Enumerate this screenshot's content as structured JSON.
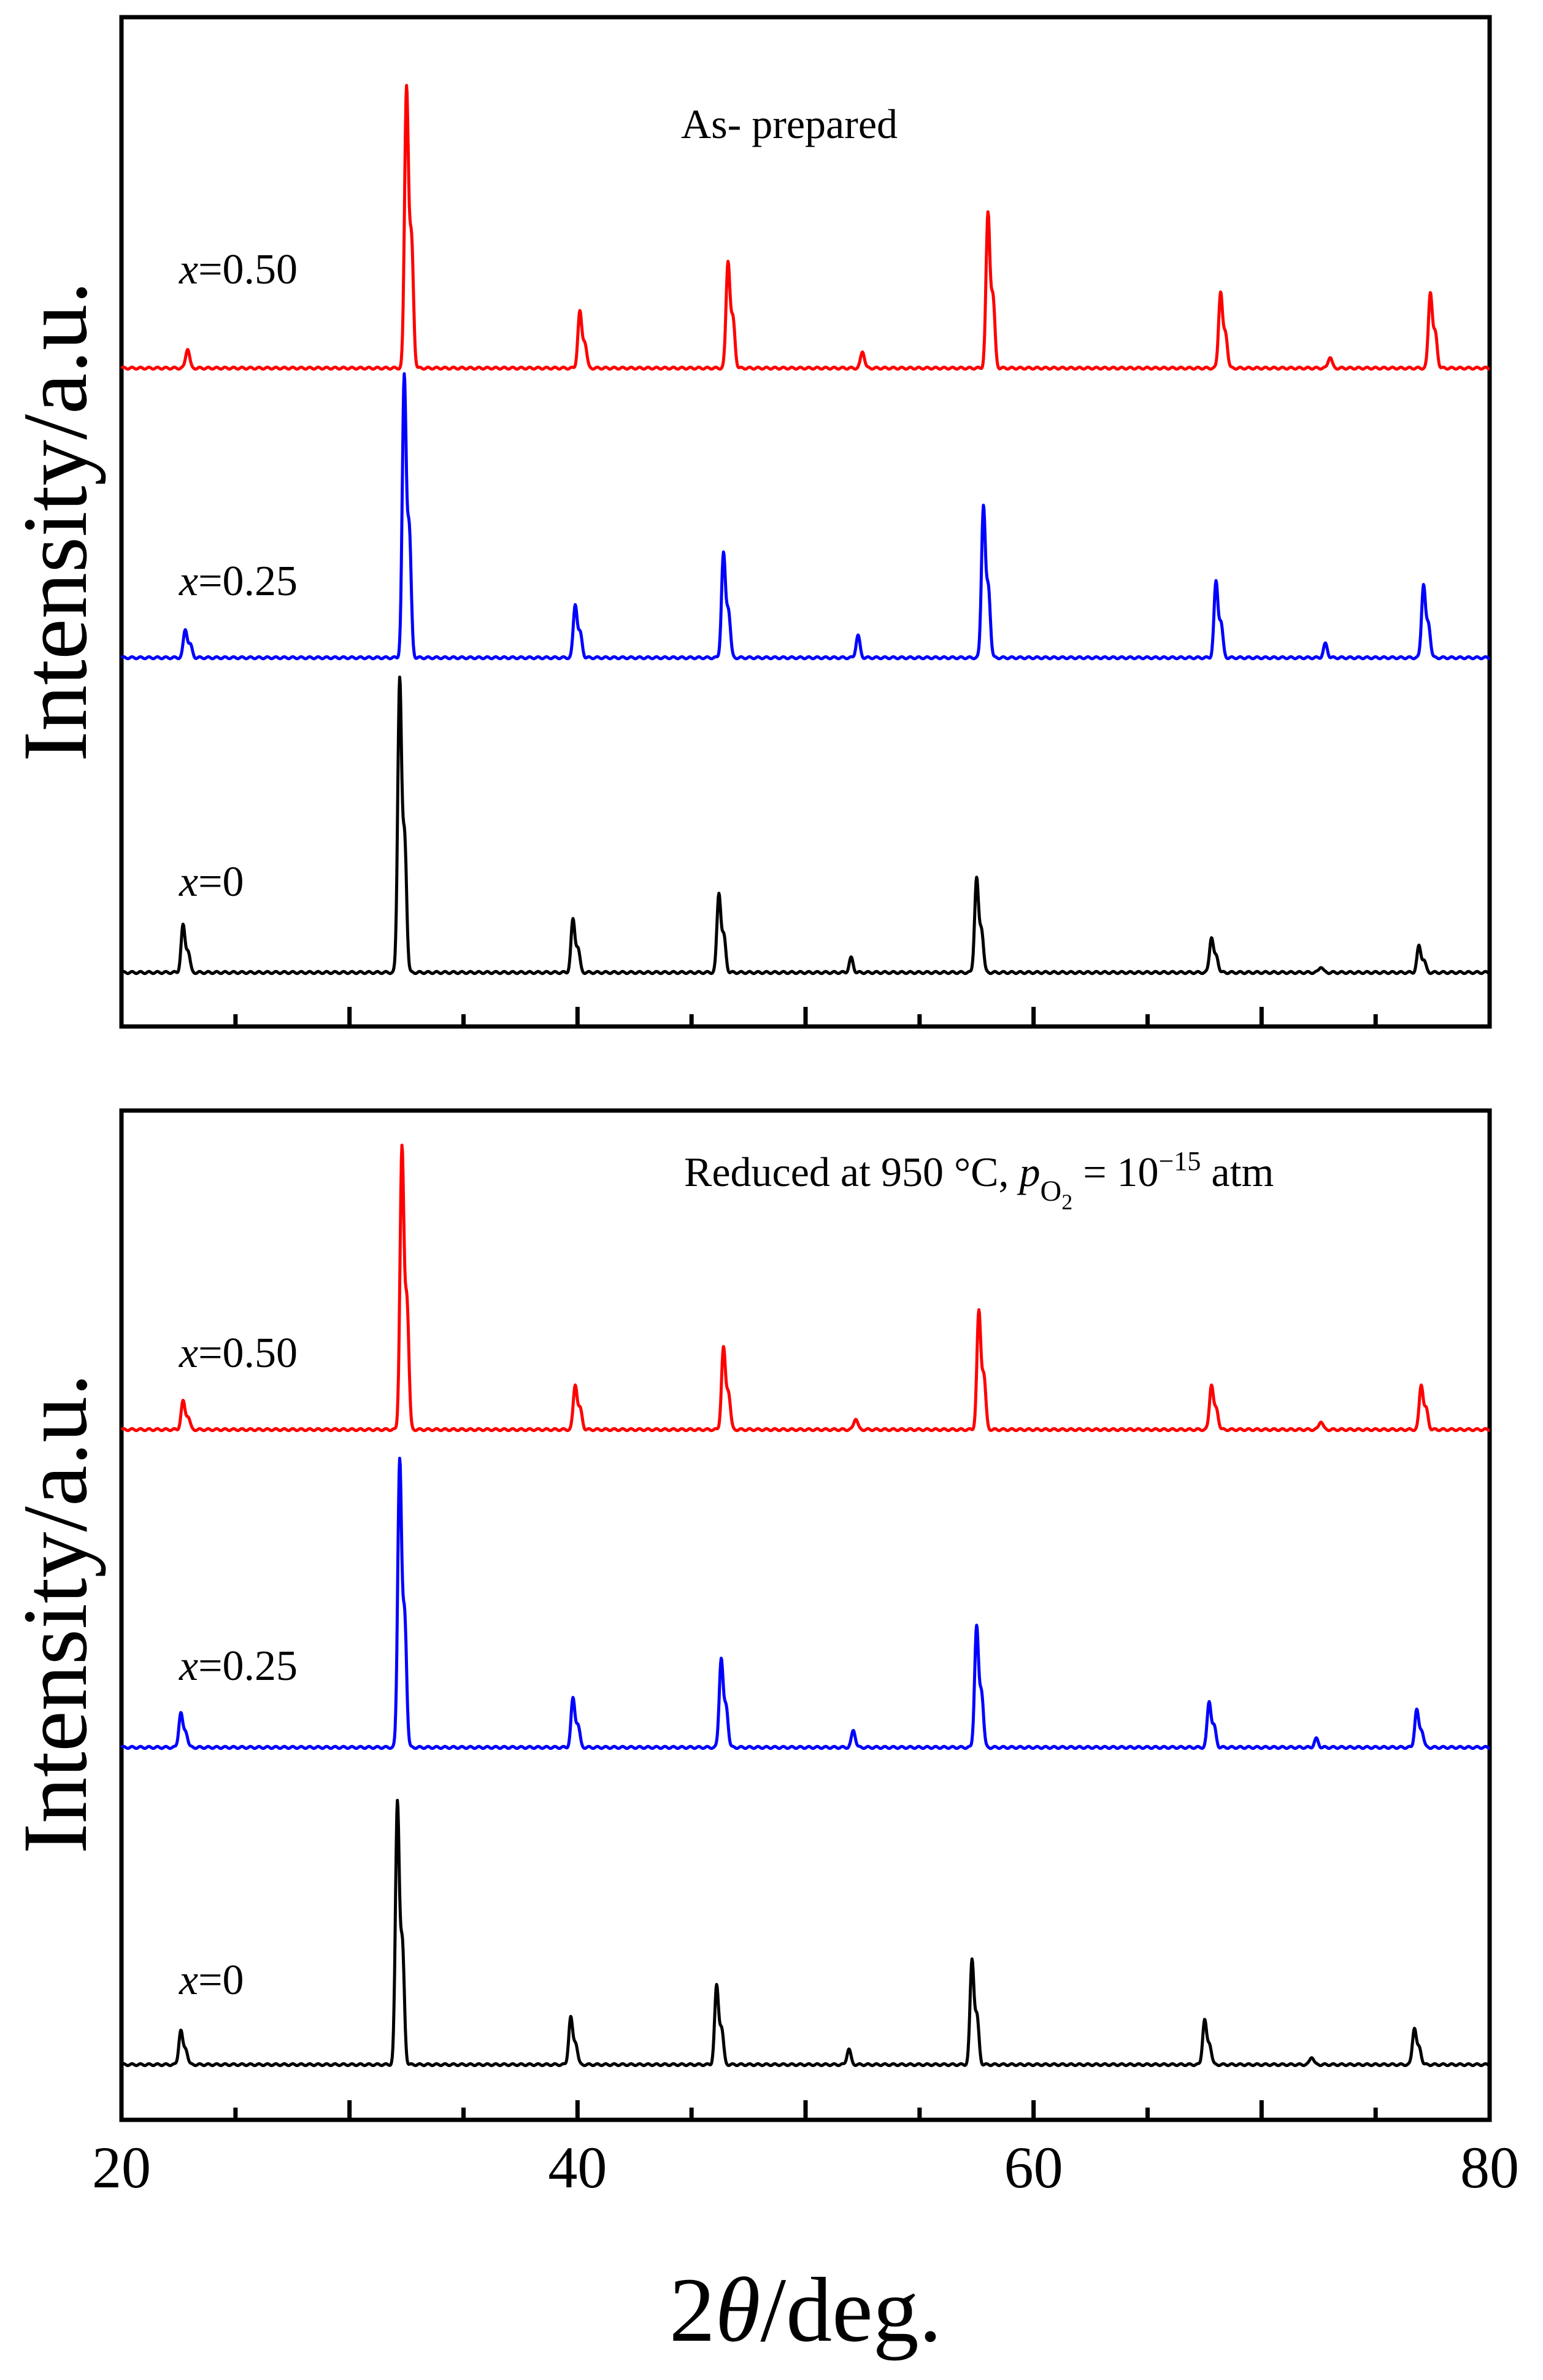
{
  "chart_data": [
    {
      "type": "line",
      "panel": "top",
      "annotation": "As- prepared",
      "ylabel": "Intensity/a.u.",
      "xlim": [
        20,
        80
      ],
      "grid": false,
      "series": [
        {
          "name_var": "x",
          "name_value": "=0.50",
          "color": "#ff0000",
          "peaks": [
            [
              22.9,
              0.07
            ],
            [
              32.5,
              1.0
            ],
            [
              40.1,
              0.2
            ],
            [
              46.6,
              0.38
            ],
            [
              52.5,
              0.06
            ],
            [
              58.0,
              0.55
            ],
            [
              68.2,
              0.27
            ],
            [
              73.0,
              0.04
            ],
            [
              77.4,
              0.27
            ]
          ]
        },
        {
          "name_var": "x",
          "name_value": "=0.25",
          "color": "#0000ff",
          "peaks": [
            [
              22.8,
              0.1
            ],
            [
              32.4,
              1.0
            ],
            [
              39.9,
              0.19
            ],
            [
              46.4,
              0.37
            ],
            [
              52.3,
              0.08
            ],
            [
              57.8,
              0.54
            ],
            [
              68.0,
              0.27
            ],
            [
              72.8,
              0.05
            ],
            [
              77.1,
              0.26
            ]
          ]
        },
        {
          "name_var": "x",
          "name_value": "=0",
          "color": "#000000",
          "peaks": [
            [
              22.7,
              0.16
            ],
            [
              32.2,
              1.0
            ],
            [
              39.8,
              0.18
            ],
            [
              46.2,
              0.27
            ],
            [
              52.0,
              0.05
            ],
            [
              57.5,
              0.32
            ],
            [
              67.8,
              0.12
            ],
            [
              72.6,
              0.02
            ],
            [
              76.9,
              0.09
            ]
          ]
        }
      ]
    },
    {
      "type": "line",
      "panel": "bottom",
      "annotation_text": "Reduced at 950 °C, ",
      "annotation_p": "p",
      "annotation_sub_o": "O",
      "annotation_sub_2": "2",
      "annotation_eq": " = 10",
      "annotation_exp": "−15",
      "annotation_unit": " atm",
      "ylabel": "Intensity/a.u.",
      "xlabel_num": "2",
      "xlabel_theta": "θ",
      "xlabel_unit": "/deg.",
      "xlim": [
        20,
        80
      ],
      "xticks": [
        "20",
        "40",
        "60",
        "80"
      ],
      "grid": false,
      "series": [
        {
          "name_var": "x",
          "name_value": "=0.50",
          "color": "#ff0000",
          "peaks": [
            [
              22.7,
              0.1
            ],
            [
              32.3,
              1.0
            ],
            [
              39.9,
              0.16
            ],
            [
              46.4,
              0.29
            ],
            [
              52.2,
              0.04
            ],
            [
              57.6,
              0.42
            ],
            [
              67.8,
              0.16
            ],
            [
              72.6,
              0.03
            ],
            [
              77.0,
              0.16
            ]
          ]
        },
        {
          "name_var": "x",
          "name_value": "=0.25",
          "color": "#0000ff",
          "peaks": [
            [
              22.6,
              0.12
            ],
            [
              32.2,
              1.0
            ],
            [
              39.8,
              0.17
            ],
            [
              46.3,
              0.31
            ],
            [
              52.1,
              0.06
            ],
            [
              57.5,
              0.42
            ],
            [
              67.7,
              0.16
            ],
            [
              72.4,
              0.03
            ],
            [
              76.8,
              0.13
            ]
          ]
        },
        {
          "name_var": "x",
          "name_value": "=0",
          "color": "#000000",
          "peaks": [
            [
              22.6,
              0.13
            ],
            [
              32.1,
              1.0
            ],
            [
              39.7,
              0.18
            ],
            [
              46.1,
              0.3
            ],
            [
              51.9,
              0.06
            ],
            [
              57.3,
              0.4
            ],
            [
              67.5,
              0.17
            ],
            [
              72.2,
              0.03
            ],
            [
              76.7,
              0.14
            ]
          ]
        }
      ]
    }
  ]
}
